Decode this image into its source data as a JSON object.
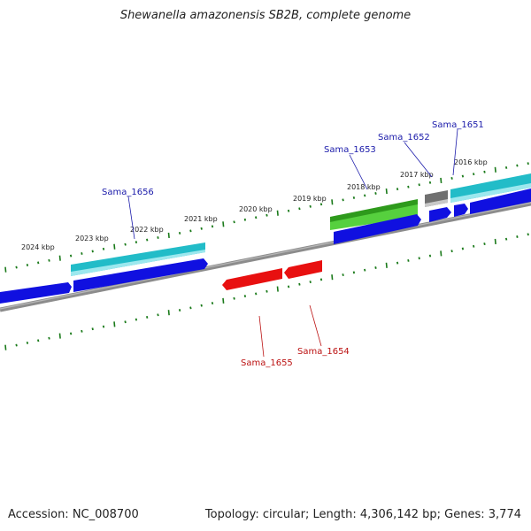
{
  "title": "Shewanella amazonensis SB2B, complete genome",
  "footer": {
    "accession": "Accession: NC_008700",
    "summary": "Topology: circular; Length: 4,306,142 bp; Genes: 3,774"
  },
  "colors": {
    "forward_cds": "#1010e0",
    "reverse_cds": "#e81010",
    "rna": "#22bcc8",
    "other_feature": "#2e9a1c",
    "pseudo": "#707070",
    "backbone": "#8c8c8c",
    "ticks": "#1a7a1a",
    "forward_label": "#1a1aaa",
    "reverse_label": "#bb1111"
  },
  "scale_labels": [
    "2024 kbp",
    "2023 kbp",
    "2022 kbp",
    "2021 kbp",
    "2020 kbp",
    "2019 kbp",
    "2018 kbp",
    "2017 kbp",
    "2016 kbp"
  ],
  "gene_labels": [
    {
      "text": "Sama_1651",
      "strand": "forward"
    },
    {
      "text": "Sama_1652",
      "strand": "forward"
    },
    {
      "text": "Sama_1653",
      "strand": "forward"
    },
    {
      "text": "Sama_1656",
      "strand": "forward"
    },
    {
      "text": "Sama_1654",
      "strand": "reverse"
    },
    {
      "text": "Sama_1655",
      "strand": "reverse"
    }
  ]
}
